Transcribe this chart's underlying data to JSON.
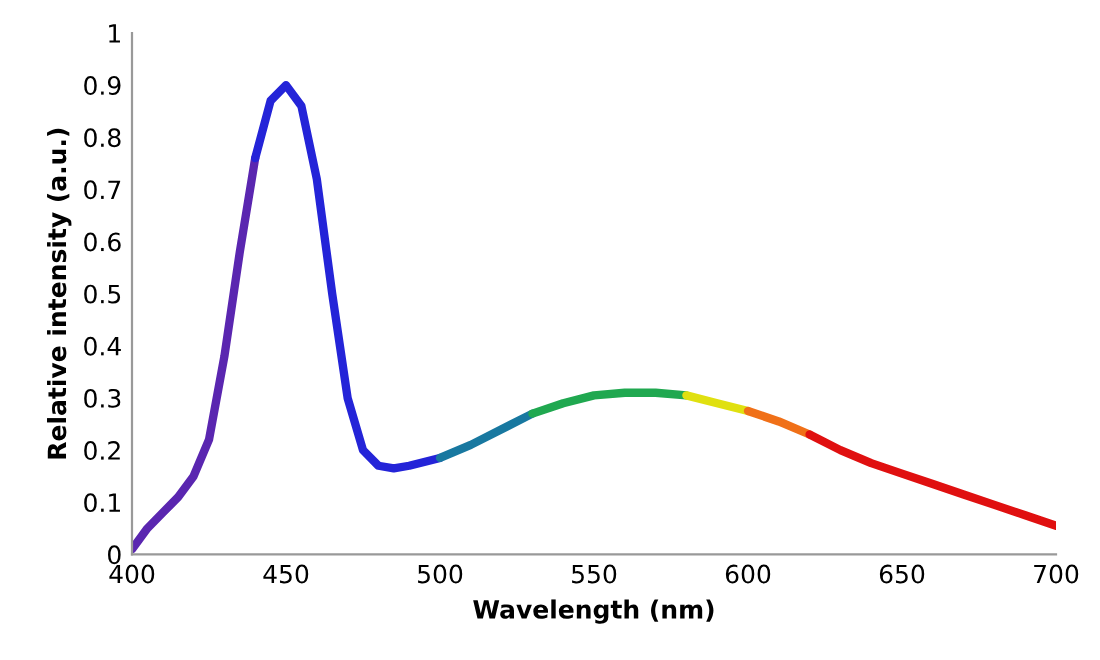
{
  "chart_data": {
    "type": "line",
    "xlabel": "Wavelength (nm)",
    "ylabel": "Relative intensity (a.u.)",
    "xlim": [
      400,
      700
    ],
    "xticks": [
      400,
      450,
      500,
      550,
      600,
      650,
      700
    ],
    "ylim": [
      0,
      1
    ],
    "yticks": [
      0,
      0.1,
      0.2,
      0.3,
      0.4,
      0.5,
      0.6,
      0.7,
      0.8,
      0.9,
      1
    ],
    "grid": false,
    "legend": false,
    "series": [
      {
        "color": "#5a26b0",
        "x": [
          400,
          405,
          410,
          415,
          420,
          425,
          430,
          435,
          440
        ],
        "values": [
          0.01,
          0.05,
          0.08,
          0.11,
          0.15,
          0.22,
          0.38,
          0.58,
          0.76
        ]
      },
      {
        "color": "#2424d8",
        "x": [
          440,
          445,
          450,
          455,
          460,
          465,
          470,
          475,
          480,
          485,
          490,
          500
        ],
        "values": [
          0.76,
          0.87,
          0.9,
          0.86,
          0.72,
          0.5,
          0.3,
          0.2,
          0.17,
          0.165,
          0.17,
          0.185
        ]
      },
      {
        "color": "#1878a0",
        "x": [
          500,
          510,
          520,
          530
        ],
        "values": [
          0.185,
          0.21,
          0.24,
          0.27
        ]
      },
      {
        "color": "#20a850",
        "x": [
          530,
          540,
          550,
          560,
          570,
          580
        ],
        "values": [
          0.27,
          0.29,
          0.305,
          0.31,
          0.31,
          0.305
        ]
      },
      {
        "color": "#e0e010",
        "x": [
          580,
          590,
          600
        ],
        "values": [
          0.305,
          0.29,
          0.275
        ]
      },
      {
        "color": "#f07018",
        "x": [
          600,
          610,
          620
        ],
        "values": [
          0.275,
          0.255,
          0.23
        ]
      },
      {
        "color": "#e01010",
        "x": [
          620,
          630,
          640,
          650,
          660,
          670,
          680,
          690,
          700
        ],
        "values": [
          0.23,
          0.2,
          0.175,
          0.155,
          0.135,
          0.115,
          0.095,
          0.075,
          0.055
        ]
      }
    ]
  }
}
